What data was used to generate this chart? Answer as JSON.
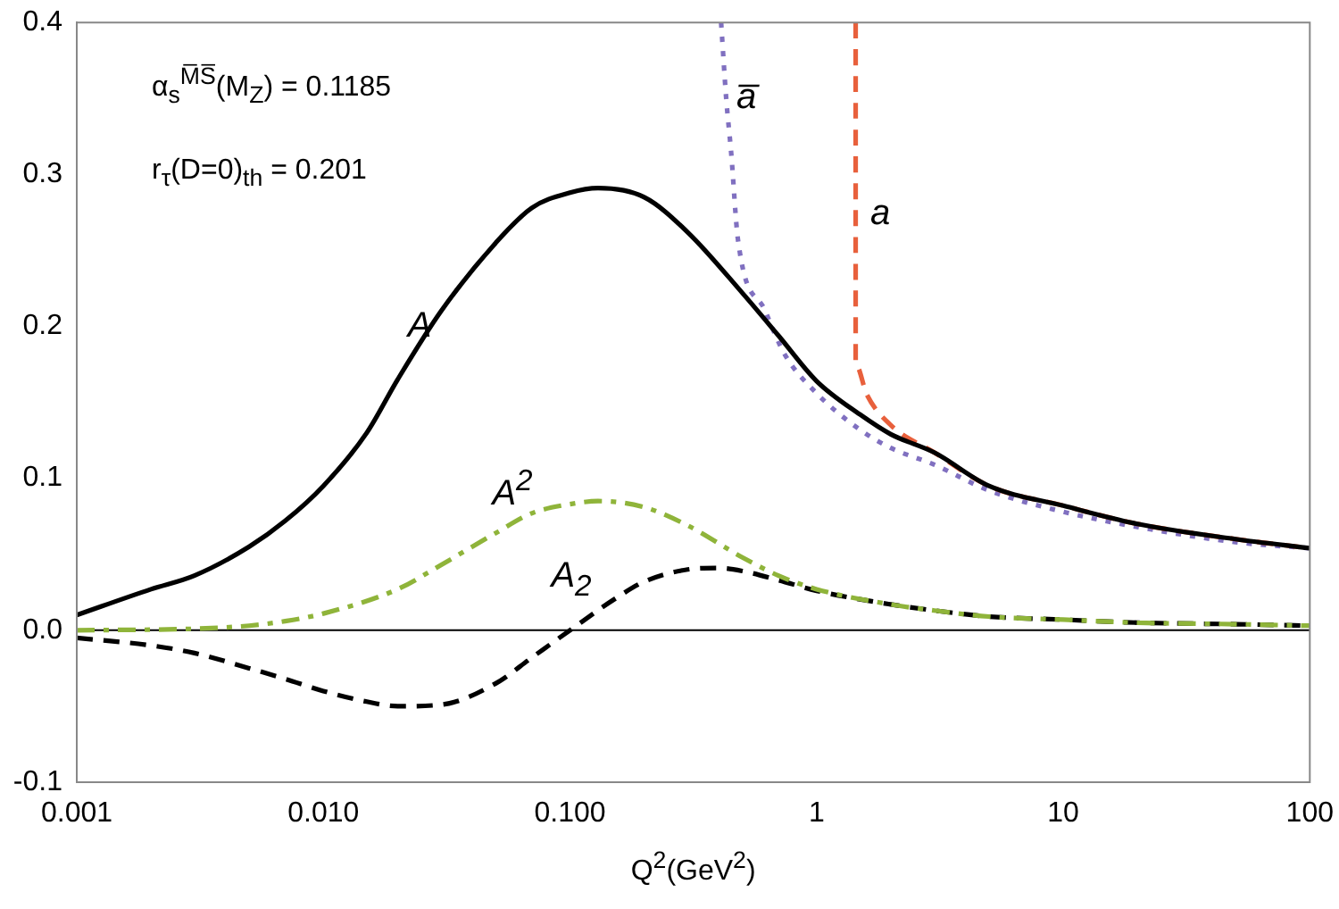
{
  "chart_data": {
    "type": "line",
    "xlabel": "Q$^{2}$(GeV$^{2}$)",
    "log": "x",
    "grid": false,
    "legend": false,
    "marker": "none",
    "xlim": [
      0.001,
      100
    ],
    "xticks": [
      {
        "value": 0.001,
        "label": "0.001"
      },
      {
        "value": 0.01,
        "label": "0.010"
      },
      {
        "value": 0.1,
        "label": "0.100"
      },
      {
        "value": 1,
        "label": "1"
      },
      {
        "value": 10,
        "label": "10"
      },
      {
        "value": 100,
        "label": "100"
      }
    ],
    "ylim": [
      -0.1,
      0.4
    ],
    "yticks": [
      {
        "value": -0.1,
        "label": "-0.1"
      },
      {
        "value": 0,
        "label": "0.0"
      },
      0.1,
      0.2,
      0.3,
      0.4
    ],
    "ref_lines": [
      {
        "axis": "y",
        "value": 0,
        "color": "#000000",
        "line_style": "solid"
      }
    ],
    "series": [
      {
        "name": "A",
        "color": "#000000",
        "line_style": "solid",
        "x": [
          0.001,
          0.002,
          0.003,
          0.005,
          0.007,
          0.01,
          0.015,
          0.02,
          0.03,
          0.05,
          0.07,
          0.1,
          0.13,
          0.2,
          0.3,
          0.5,
          0.7,
          1,
          1.5,
          2,
          3,
          5,
          10,
          20,
          50,
          100
        ],
        "values": [
          0.01,
          0.027,
          0.036,
          0.055,
          0.072,
          0.095,
          0.13,
          0.165,
          0.21,
          0.255,
          0.278,
          0.288,
          0.291,
          0.285,
          0.262,
          0.222,
          0.194,
          0.164,
          0.142,
          0.129,
          0.117,
          0.095,
          0.082,
          0.07,
          0.06,
          0.054
        ]
      },
      {
        "name": "a",
        "color": "#e8603c",
        "line_style": "dashed",
        "x": [
          1.44,
          1.44,
          1.6,
          2,
          3,
          5,
          10,
          20,
          50,
          100
        ],
        "values": [
          0.4,
          0.175,
          0.155,
          0.135,
          0.117,
          0.095,
          0.082,
          0.07,
          0.06,
          0.054
        ]
      },
      {
        "name": "a̅",
        "color": "#8070c0",
        "line_style": "dotted",
        "x": [
          0.41,
          0.43,
          0.45,
          0.48,
          0.62,
          0.74,
          1,
          1.5,
          2,
          3,
          5,
          10,
          20,
          50,
          100
        ],
        "values": [
          0.4,
          0.35,
          0.315,
          0.257,
          0.21,
          0.182,
          0.156,
          0.132,
          0.12,
          0.109,
          0.092,
          0.078,
          0.068,
          0.058,
          0.054
        ]
      },
      {
        "name": "A$^{2}$",
        "color": "#8fb43a",
        "line_style": "dashdot",
        "x": [
          0.001,
          0.003,
          0.005,
          0.007,
          0.01,
          0.02,
          0.03,
          0.05,
          0.07,
          0.1,
          0.13,
          0.2,
          0.3,
          0.5,
          0.7,
          1,
          2,
          3,
          5,
          10,
          20,
          50,
          100
        ],
        "values": [
          0.0,
          0.001,
          0.003,
          0.006,
          0.011,
          0.027,
          0.043,
          0.064,
          0.077,
          0.083,
          0.085,
          0.081,
          0.069,
          0.048,
          0.036,
          0.027,
          0.017,
          0.013,
          0.009,
          0.007,
          0.005,
          0.004,
          0.003
        ]
      },
      {
        "name": "A$_{2}$",
        "color": "#000000",
        "line_style": "dashed",
        "x": [
          0.001,
          0.002,
          0.003,
          0.005,
          0.007,
          0.01,
          0.015,
          0.02,
          0.03,
          0.05,
          0.07,
          0.1,
          0.15,
          0.2,
          0.3,
          0.4,
          0.5,
          0.7,
          1,
          2,
          3,
          5,
          10,
          20,
          50,
          100
        ],
        "values": [
          -0.005,
          -0.01,
          -0.015,
          -0.025,
          -0.032,
          -0.04,
          -0.047,
          -0.05,
          -0.049,
          -0.035,
          -0.018,
          0.0,
          0.02,
          0.032,
          0.04,
          0.041,
          0.039,
          0.033,
          0.026,
          0.017,
          0.013,
          0.009,
          0.007,
          0.005,
          0.004,
          0.003
        ]
      }
    ],
    "annotations": [
      "α$_{s}$$^{M̅S̅}$(M$_{Z}$) = 0.1185",
      "r$_{τ}$(D=0)$_{th}$ = 0.201"
    ]
  }
}
